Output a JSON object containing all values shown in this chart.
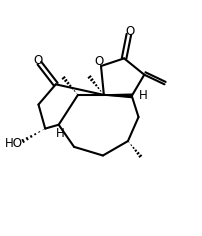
{
  "bg_color": "#ffffff",
  "lc": "#000000",
  "lw": 1.5,
  "fs": 8.5,
  "figsize": [
    2.02,
    2.36
  ],
  "dpi": 100,
  "xlim": [
    0.0,
    10.5
  ],
  "ylim": [
    0.5,
    12.5
  ]
}
